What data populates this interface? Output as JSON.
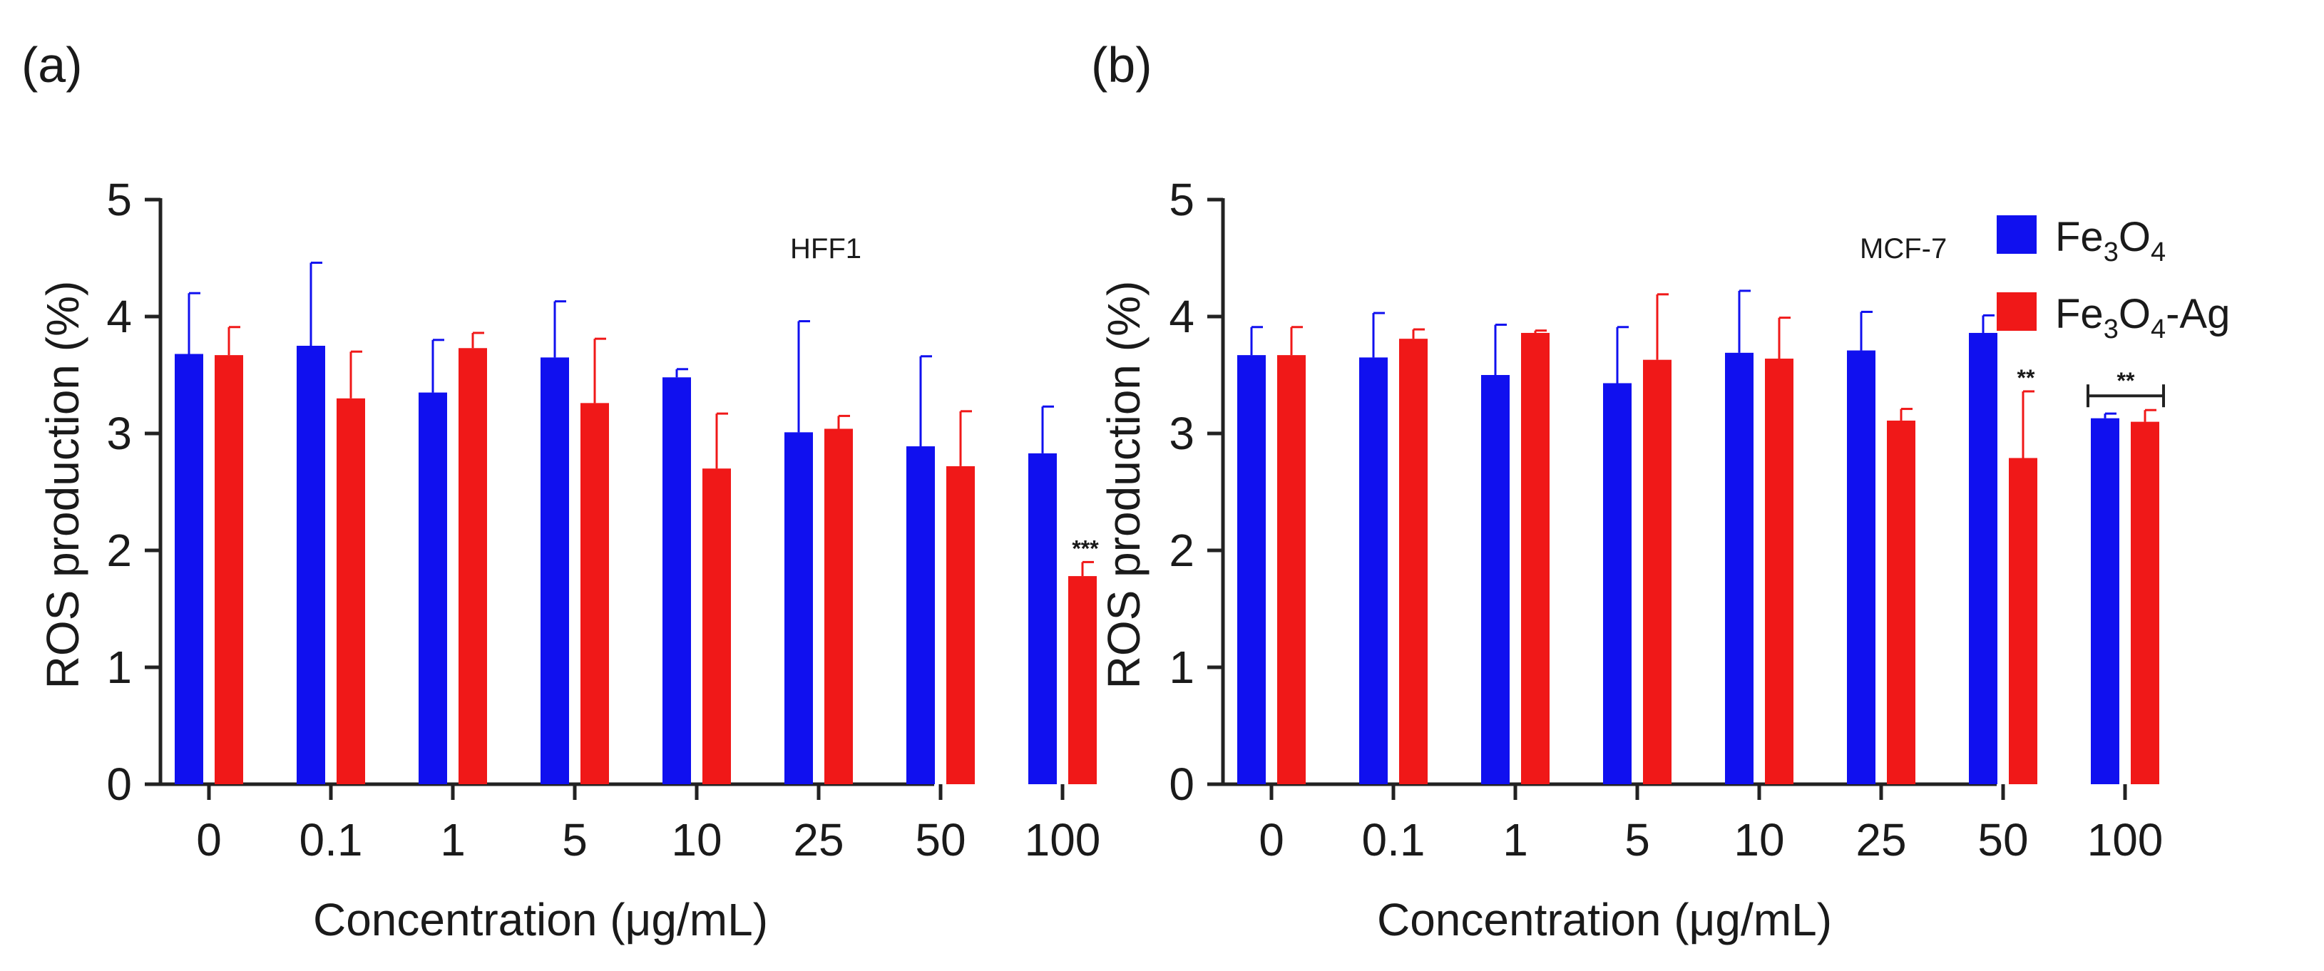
{
  "legend": {
    "items": [
      {
        "label": "Fe",
        "sub1": "3",
        "mid": "O",
        "sub2": "4",
        "suffix": "",
        "color": "#1010ef"
      },
      {
        "label": "Fe",
        "sub1": "3",
        "mid": "O",
        "sub2": "4",
        "suffix": "-Ag",
        "color": "#f01818"
      }
    ]
  },
  "chart_data": [
    {
      "type": "bar",
      "panel_label": "(a)",
      "cell_line": "HFF1",
      "xlabel": "Concentration  (μg/mL)",
      "ylabel": "ROS production (%)",
      "ylim": [
        0,
        5
      ],
      "yticks": [
        "0",
        "1",
        "2",
        "3",
        "4",
        "5"
      ],
      "categories": [
        "0",
        "0.1",
        "1",
        "5",
        "10",
        "25",
        "50",
        "100"
      ],
      "series": [
        {
          "name": "Fe3O4",
          "color": "#1010ef",
          "values": [
            3.68,
            3.75,
            3.35,
            3.65,
            3.48,
            3.01,
            2.89,
            2.83
          ],
          "errors": [
            0.52,
            0.71,
            0.45,
            0.48,
            0.07,
            0.95,
            0.77,
            0.4
          ]
        },
        {
          "name": "Fe3O4-Ag",
          "color": "#f01818",
          "values": [
            3.67,
            3.3,
            3.73,
            3.26,
            2.7,
            3.04,
            2.72,
            1.78
          ],
          "errors": [
            0.24,
            0.4,
            0.13,
            0.55,
            0.47,
            0.11,
            0.47,
            0.12
          ]
        }
      ],
      "annotations": [
        {
          "category": "100",
          "series": "Fe3O4-Ag",
          "text": "***"
        }
      ]
    },
    {
      "type": "bar",
      "panel_label": "(b)",
      "cell_line": "MCF-7",
      "xlabel": "Concentration  (μg/mL)",
      "ylabel": "ROS production (%)",
      "ylim": [
        0,
        5
      ],
      "yticks": [
        "0",
        "1",
        "2",
        "3",
        "4",
        "5"
      ],
      "categories": [
        "0",
        "0.1",
        "1",
        "5",
        "10",
        "25",
        "50",
        "100"
      ],
      "series": [
        {
          "name": "Fe3O4",
          "color": "#1010ef",
          "values": [
            3.67,
            3.65,
            3.5,
            3.43,
            3.69,
            3.71,
            3.86,
            3.13
          ],
          "errors": [
            0.24,
            0.38,
            0.43,
            0.48,
            0.53,
            0.33,
            0.15,
            0.04
          ]
        },
        {
          "name": "Fe3O4-Ag",
          "color": "#f01818",
          "values": [
            3.67,
            3.81,
            3.86,
            3.63,
            3.64,
            3.11,
            2.79,
            3.1
          ],
          "errors": [
            0.24,
            0.08,
            0.02,
            0.56,
            0.35,
            0.1,
            0.57,
            0.1
          ]
        }
      ],
      "annotations": [
        {
          "category": "50",
          "series": "Fe3O4-Ag",
          "text": "**"
        },
        {
          "category": "100",
          "series": "bracket",
          "text": "**"
        }
      ]
    }
  ]
}
